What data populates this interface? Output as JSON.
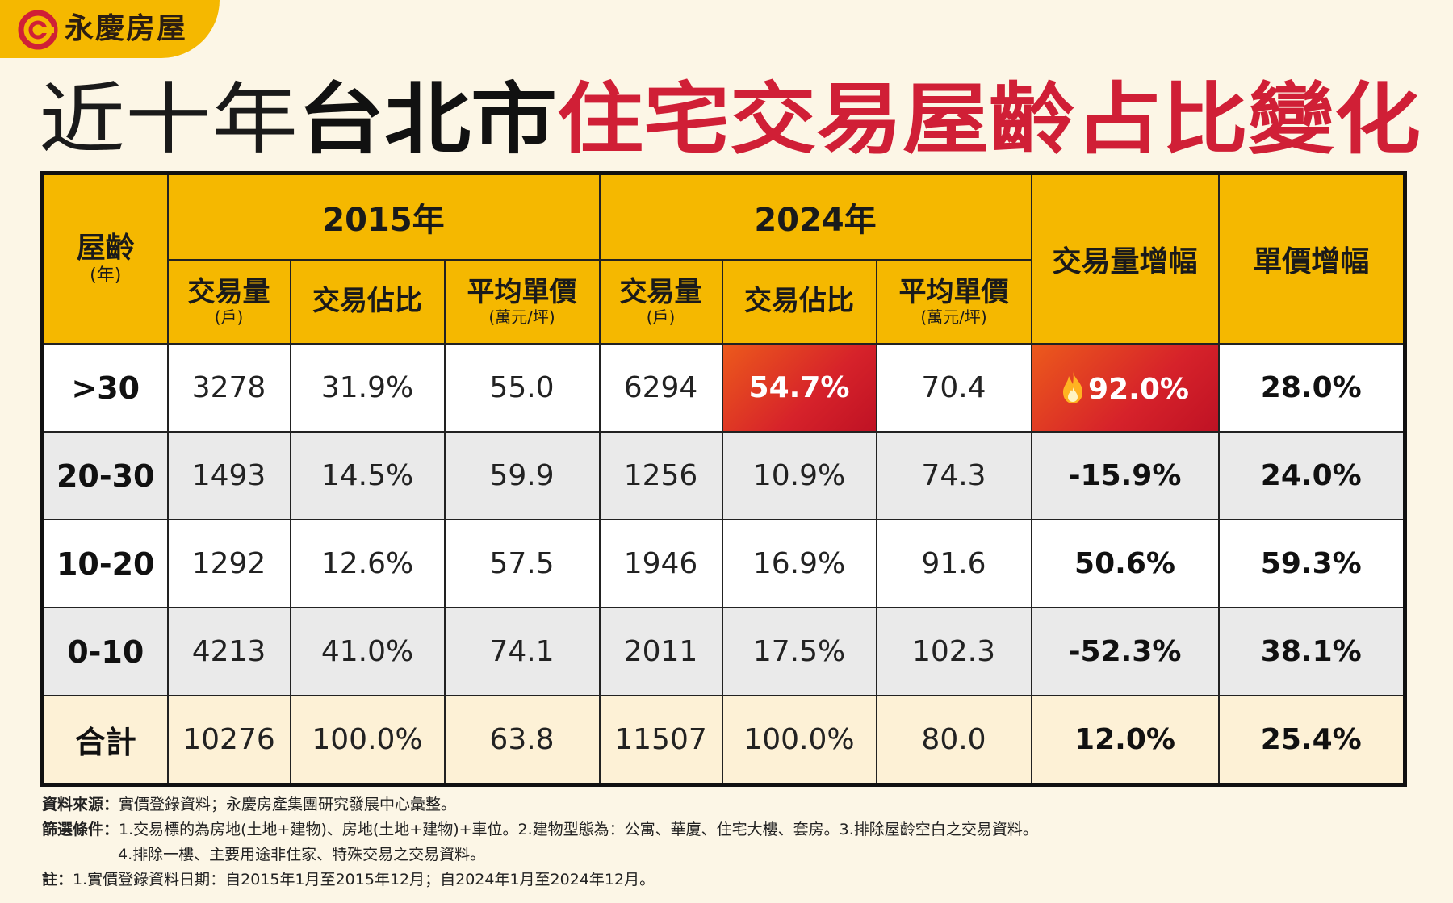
{
  "brand": {
    "name": "永慶房屋",
    "accent": "#f5b800",
    "logo_icon": "ring-logo-icon"
  },
  "title": {
    "part1": "近十年",
    "part2": "台北市",
    "part3": "住宅交易屋齡占比變化",
    "red_color": "#d01f36"
  },
  "table": {
    "age_header": "屋齡",
    "age_unit": "(年)",
    "year_2015": "2015年",
    "year_2024": "2024年",
    "col_volume": "交易量",
    "col_volume_unit": "(戶)",
    "col_share": "交易佔比",
    "col_price": "平均單價",
    "col_price_unit": "(萬元/坪)",
    "col_vol_growth": "交易量增幅",
    "col_price_growth": "單價增幅"
  },
  "chart_data": {
    "type": "table",
    "columns": [
      "屋齡",
      "2015年 交易量",
      "2015年 交易佔比",
      "2015年 平均單價",
      "2024年 交易量",
      "2024年 交易佔比",
      "2024年 平均單價",
      "交易量增幅",
      "單價增幅"
    ],
    "rows": [
      {
        "age": ">30",
        "v2015": "3278",
        "s2015": "31.9%",
        "p2015": "55.0",
        "v2024": "6294",
        "s2024": "54.7%",
        "p2024": "70.4",
        "vol_growth": "92.0%",
        "price_growth": "28.0%"
      },
      {
        "age": "20-30",
        "v2015": "1493",
        "s2015": "14.5%",
        "p2015": "59.9",
        "v2024": "1256",
        "s2024": "10.9%",
        "p2024": "74.3",
        "vol_growth": "-15.9%",
        "price_growth": "24.0%"
      },
      {
        "age": "10-20",
        "v2015": "1292",
        "s2015": "12.6%",
        "p2015": "57.5",
        "v2024": "1946",
        "s2024": "16.9%",
        "p2024": "91.6",
        "vol_growth": "50.6%",
        "price_growth": "59.3%"
      },
      {
        "age": "0-10",
        "v2015": "4213",
        "s2015": "41.0%",
        "p2015": "74.1",
        "v2024": "2011",
        "s2024": "17.5%",
        "p2024": "102.3",
        "vol_growth": "-52.3%",
        "price_growth": "38.1%"
      },
      {
        "age": "合計",
        "v2015": "10276",
        "s2015": "100.0%",
        "p2015": "63.8",
        "v2024": "11507",
        "s2024": "100.0%",
        "p2024": "80.0",
        "vol_growth": "12.0%",
        "price_growth": "25.4%"
      }
    ],
    "highlight_color": "#d6222a"
  },
  "notes": {
    "source_key": "資料來源：",
    "source": "實價登錄資料；永慶房產集團研究發展中心彙整。",
    "filter_key": "篩選條件：",
    "filter1": "1.交易標的為房地(土地+建物)、房地(土地+建物)+車位。2.建物型態為：公寓、華廈、住宅大樓、套房。3.排除屋齡空白之交易資料。",
    "filter2": "4.排除一樓、主要用途非住家、特殊交易之交易資料。",
    "note_key": "註：",
    "note": "1.實價登錄資料日期：自2015年1月至2015年12月；自2024年1月至2024年12月。"
  }
}
